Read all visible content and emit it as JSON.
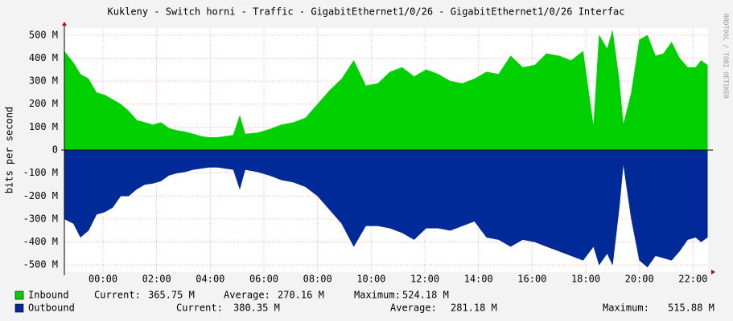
{
  "chart_data": {
    "type": "area",
    "title": "Kukleny - Switch horni - Traffic - GigabitEthernet1/0/26 - GigabitEthernet1/0/26 Interfac",
    "y_label": "bits per second",
    "watermark": "RRDTOOL / TOBI OETIKER",
    "grid": true,
    "xlim": [
      -1.44,
      22.56
    ],
    "ylim": [
      -531,
      531
    ],
    "xticks": [
      {
        "value": 0,
        "label": "00:00"
      },
      {
        "value": 2,
        "label": "02:00"
      },
      {
        "value": 4,
        "label": "04:00"
      },
      {
        "value": 6,
        "label": "06:00"
      },
      {
        "value": 8,
        "label": "08:00"
      },
      {
        "value": 10,
        "label": "10:00"
      },
      {
        "value": 12,
        "label": "12:00"
      },
      {
        "value": 14,
        "label": "14:00"
      },
      {
        "value": 16,
        "label": "16:00"
      },
      {
        "value": 18,
        "label": "18:00"
      },
      {
        "value": 20,
        "label": "20:00"
      },
      {
        "value": 22,
        "label": "22:00"
      }
    ],
    "yticks": [
      {
        "value": 500,
        "label": "500 M"
      },
      {
        "value": 400,
        "label": "400 M"
      },
      {
        "value": 300,
        "label": "300 M"
      },
      {
        "value": 200,
        "label": "200 M"
      },
      {
        "value": 100,
        "label": "100 M"
      },
      0,
      {
        "value": -100,
        "label": "-100 M"
      },
      {
        "value": -200,
        "label": "-200 M"
      },
      {
        "value": -300,
        "label": "-300 M"
      },
      {
        "value": -400,
        "label": "-400 M"
      },
      {
        "value": -500,
        "label": "-500 M"
      }
    ],
    "x": [
      -1.44,
      -1.1,
      -0.84,
      -0.54,
      -0.24,
      0.06,
      0.36,
      0.66,
      0.96,
      1.26,
      1.56,
      1.86,
      2.16,
      2.46,
      2.76,
      3.06,
      3.36,
      3.66,
      3.96,
      4.26,
      4.56,
      4.86,
      5.1,
      5.3,
      5.76,
      6.2,
      6.65,
      7.1,
      7.55,
      8.0,
      8.45,
      8.9,
      9.35,
      9.8,
      10.25,
      10.7,
      11.15,
      11.6,
      12.05,
      12.5,
      12.95,
      13.4,
      13.85,
      14.3,
      14.75,
      15.2,
      15.65,
      16.1,
      16.54,
      17.0,
      17.45,
      17.9,
      18.29,
      18.5,
      18.8,
      19.0,
      19.25,
      19.4,
      19.7,
      20.0,
      20.3,
      20.6,
      20.9,
      21.2,
      21.5,
      21.8,
      22.1,
      22.3,
      22.54
    ],
    "series": [
      {
        "name": "Inbound",
        "color": "#00cf00",
        "values": [
          430,
          380,
          330,
          310,
          250,
          240,
          220,
          200,
          170,
          130,
          120,
          110,
          120,
          95,
          85,
          80,
          70,
          60,
          55,
          55,
          60,
          65,
          150,
          70,
          75,
          90,
          110,
          120,
          140,
          200,
          260,
          310,
          390,
          280,
          290,
          340,
          360,
          320,
          350,
          330,
          300,
          290,
          310,
          340,
          330,
          410,
          360,
          370,
          420,
          410,
          390,
          430,
          100,
          500,
          440,
          520,
          300,
          110,
          250,
          480,
          500,
          410,
          420,
          470,
          400,
          360,
          360,
          390,
          370
        ],
        "stats": [
          {
            "label": "Current:",
            "value": "365.75 M"
          },
          {
            "label": "Average:",
            "value": "270.16 M"
          },
          {
            "label": "Maximum:",
            "value": "524.18 M"
          }
        ]
      },
      {
        "name": "Outbound",
        "color": "#002a97",
        "values": [
          -300,
          -320,
          -380,
          -350,
          -280,
          -270,
          -250,
          -200,
          -200,
          -170,
          -150,
          -145,
          -135,
          -110,
          -100,
          -95,
          -85,
          -80,
          -75,
          -75,
          -80,
          -85,
          -170,
          -85,
          -95,
          -110,
          -130,
          -140,
          -160,
          -200,
          -260,
          -320,
          -420,
          -330,
          -330,
          -340,
          -360,
          -390,
          -340,
          -340,
          -350,
          -330,
          -310,
          -380,
          -390,
          -420,
          -390,
          -400,
          -420,
          -440,
          -460,
          -480,
          -420,
          -500,
          -450,
          -500,
          -250,
          -60,
          -300,
          -480,
          -510,
          -460,
          -470,
          -480,
          -440,
          -390,
          -380,
          -400,
          -380
        ],
        "stats": [
          {
            "label": "Current:",
            "value": "380.35 M"
          },
          {
            "label": "Average:",
            "value": "281.18 M"
          },
          {
            "label": "Maximum:",
            "value": "515.88 M"
          }
        ]
      }
    ]
  }
}
